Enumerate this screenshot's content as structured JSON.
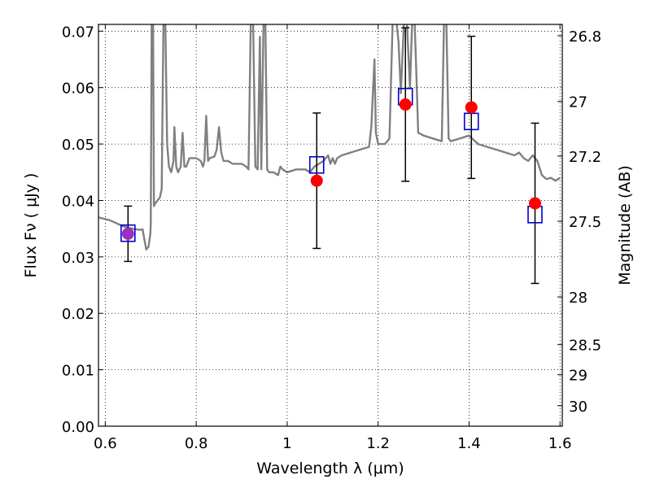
{
  "chart_data": {
    "type": "scatter",
    "xlabel": "Wavelength  λ (μm)",
    "ylabel": "Flux  Fν  ( μJy )",
    "y2label": "Magnitude (AB)",
    "xlim": [
      0.585,
      1.605
    ],
    "ylim": [
      0.0,
      0.0712
    ],
    "xticks": [
      {
        "v": 0.6,
        "label": "0.6"
      },
      {
        "v": 0.8,
        "label": "0.8"
      },
      {
        "v": 1.0,
        "label": "1"
      },
      {
        "v": 1.2,
        "label": "1.2"
      },
      {
        "v": 1.4,
        "label": "1.4"
      },
      {
        "v": 1.6,
        "label": "1.6"
      }
    ],
    "yticks": [
      {
        "v": 0.0,
        "label": "0.00"
      },
      {
        "v": 0.01,
        "label": "0.01"
      },
      {
        "v": 0.02,
        "label": "0.02"
      },
      {
        "v": 0.03,
        "label": "0.03"
      },
      {
        "v": 0.04,
        "label": "0.04"
      },
      {
        "v": 0.05,
        "label": "0.05"
      },
      {
        "v": 0.06,
        "label": "0.06"
      },
      {
        "v": 0.07,
        "label": "0.07"
      }
    ],
    "y2ticks": [
      {
        "mag": 26.8,
        "label": "26.8"
      },
      {
        "mag": 27.0,
        "label": "27"
      },
      {
        "mag": 27.2,
        "label": "27.2"
      },
      {
        "mag": 27.5,
        "label": "27.5"
      },
      {
        "mag": 28.0,
        "label": "28"
      },
      {
        "mag": 28.5,
        "label": "28.5"
      },
      {
        "mag": 29.0,
        "label": "29"
      },
      {
        "mag": 30.0,
        "label": "30"
      }
    ],
    "grid": true,
    "colors": {
      "observed": "#ff0000",
      "observed_overlap": "#9b2fbf",
      "model_points": "#0000cc",
      "model_spectrum": "#808080",
      "errorbars": "#000000"
    },
    "series": [
      {
        "kind": "observed",
        "points": [
          {
            "x": 0.65,
            "y": 0.0341,
            "err": 0.0049
          },
          {
            "x": 1.065,
            "y": 0.0435,
            "err": 0.012
          },
          {
            "x": 1.26,
            "y": 0.057,
            "err": 0.0136
          },
          {
            "x": 1.405,
            "y": 0.0565,
            "err": 0.0126
          },
          {
            "x": 1.545,
            "y": 0.0395,
            "err": 0.0142
          }
        ]
      },
      {
        "kind": "model_points",
        "points": [
          {
            "x": 0.65,
            "y": 0.0342
          },
          {
            "x": 1.065,
            "y": 0.0463
          },
          {
            "x": 1.26,
            "y": 0.0584
          },
          {
            "x": 1.405,
            "y": 0.054
          },
          {
            "x": 1.545,
            "y": 0.0375
          }
        ]
      },
      {
        "kind": "model_spectrum",
        "points": [
          [
            0.585,
            0.037
          ],
          [
            0.61,
            0.0365
          ],
          [
            0.64,
            0.0354
          ],
          [
            0.66,
            0.035
          ],
          [
            0.675,
            0.0348
          ],
          [
            0.682,
            0.0349
          ],
          [
            0.69,
            0.0313
          ],
          [
            0.695,
            0.0318
          ],
          [
            0.699,
            0.034
          ],
          [
            0.7,
            0.036
          ],
          [
            0.702,
            0.072
          ],
          [
            0.705,
            0.072
          ],
          [
            0.707,
            0.039
          ],
          [
            0.71,
            0.0395
          ],
          [
            0.715,
            0.04
          ],
          [
            0.72,
            0.0405
          ],
          [
            0.724,
            0.042
          ],
          [
            0.728,
            0.072
          ],
          [
            0.732,
            0.072
          ],
          [
            0.736,
            0.05
          ],
          [
            0.74,
            0.046
          ],
          [
            0.745,
            0.045
          ],
          [
            0.75,
            0.047
          ],
          [
            0.752,
            0.053
          ],
          [
            0.756,
            0.046
          ],
          [
            0.76,
            0.045
          ],
          [
            0.766,
            0.046
          ],
          [
            0.77,
            0.052
          ],
          [
            0.774,
            0.046
          ],
          [
            0.778,
            0.046
          ],
          [
            0.785,
            0.0475
          ],
          [
            0.8,
            0.0475
          ],
          [
            0.81,
            0.047
          ],
          [
            0.815,
            0.046
          ],
          [
            0.818,
            0.047
          ],
          [
            0.822,
            0.055
          ],
          [
            0.826,
            0.047
          ],
          [
            0.83,
            0.0475
          ],
          [
            0.84,
            0.0478
          ],
          [
            0.845,
            0.049
          ],
          [
            0.85,
            0.053
          ],
          [
            0.855,
            0.0485
          ],
          [
            0.86,
            0.047
          ],
          [
            0.87,
            0.047
          ],
          [
            0.88,
            0.0465
          ],
          [
            0.9,
            0.0465
          ],
          [
            0.91,
            0.046
          ],
          [
            0.915,
            0.0455
          ],
          [
            0.92,
            0.072
          ],
          [
            0.925,
            0.072
          ],
          [
            0.93,
            0.046
          ],
          [
            0.935,
            0.0455
          ],
          [
            0.94,
            0.069
          ],
          [
            0.943,
            0.0455
          ],
          [
            0.948,
            0.072
          ],
          [
            0.952,
            0.072
          ],
          [
            0.956,
            0.0455
          ],
          [
            0.96,
            0.045
          ],
          [
            0.97,
            0.045
          ],
          [
            0.98,
            0.0445
          ],
          [
            0.985,
            0.046
          ],
          [
            0.99,
            0.0455
          ],
          [
            1.0,
            0.045
          ],
          [
            1.02,
            0.0455
          ],
          [
            1.04,
            0.0455
          ],
          [
            1.05,
            0.045
          ],
          [
            1.06,
            0.046
          ],
          [
            1.07,
            0.0465
          ],
          [
            1.08,
            0.047
          ],
          [
            1.09,
            0.048
          ],
          [
            1.095,
            0.0465
          ],
          [
            1.1,
            0.0475
          ],
          [
            1.105,
            0.0465
          ],
          [
            1.11,
            0.0475
          ],
          [
            1.12,
            0.048
          ],
          [
            1.14,
            0.0485
          ],
          [
            1.16,
            0.049
          ],
          [
            1.18,
            0.0495
          ],
          [
            1.185,
            0.053
          ],
          [
            1.192,
            0.065
          ],
          [
            1.195,
            0.052
          ],
          [
            1.2,
            0.05
          ],
          [
            1.215,
            0.05
          ],
          [
            1.225,
            0.051
          ],
          [
            1.232,
            0.072
          ],
          [
            1.24,
            0.072
          ],
          [
            1.245,
            0.068
          ],
          [
            1.25,
            0.059
          ],
          [
            1.257,
            0.072
          ],
          [
            1.263,
            0.072
          ],
          [
            1.27,
            0.06
          ],
          [
            1.275,
            0.072
          ],
          [
            1.28,
            0.072
          ],
          [
            1.283,
            0.065
          ],
          [
            1.288,
            0.052
          ],
          [
            1.3,
            0.0515
          ],
          [
            1.32,
            0.051
          ],
          [
            1.34,
            0.0505
          ],
          [
            1.345,
            0.072
          ],
          [
            1.35,
            0.072
          ],
          [
            1.355,
            0.051
          ],
          [
            1.36,
            0.0505
          ],
          [
            1.38,
            0.051
          ],
          [
            1.4,
            0.0515
          ],
          [
            1.42,
            0.05
          ],
          [
            1.44,
            0.0495
          ],
          [
            1.46,
            0.049
          ],
          [
            1.48,
            0.0485
          ],
          [
            1.5,
            0.048
          ],
          [
            1.51,
            0.0485
          ],
          [
            1.52,
            0.0475
          ],
          [
            1.53,
            0.047
          ],
          [
            1.54,
            0.048
          ],
          [
            1.55,
            0.047
          ],
          [
            1.56,
            0.0445
          ],
          [
            1.57,
            0.0438
          ],
          [
            1.58,
            0.044
          ],
          [
            1.59,
            0.0435
          ],
          [
            1.6,
            0.044
          ]
        ]
      }
    ]
  }
}
